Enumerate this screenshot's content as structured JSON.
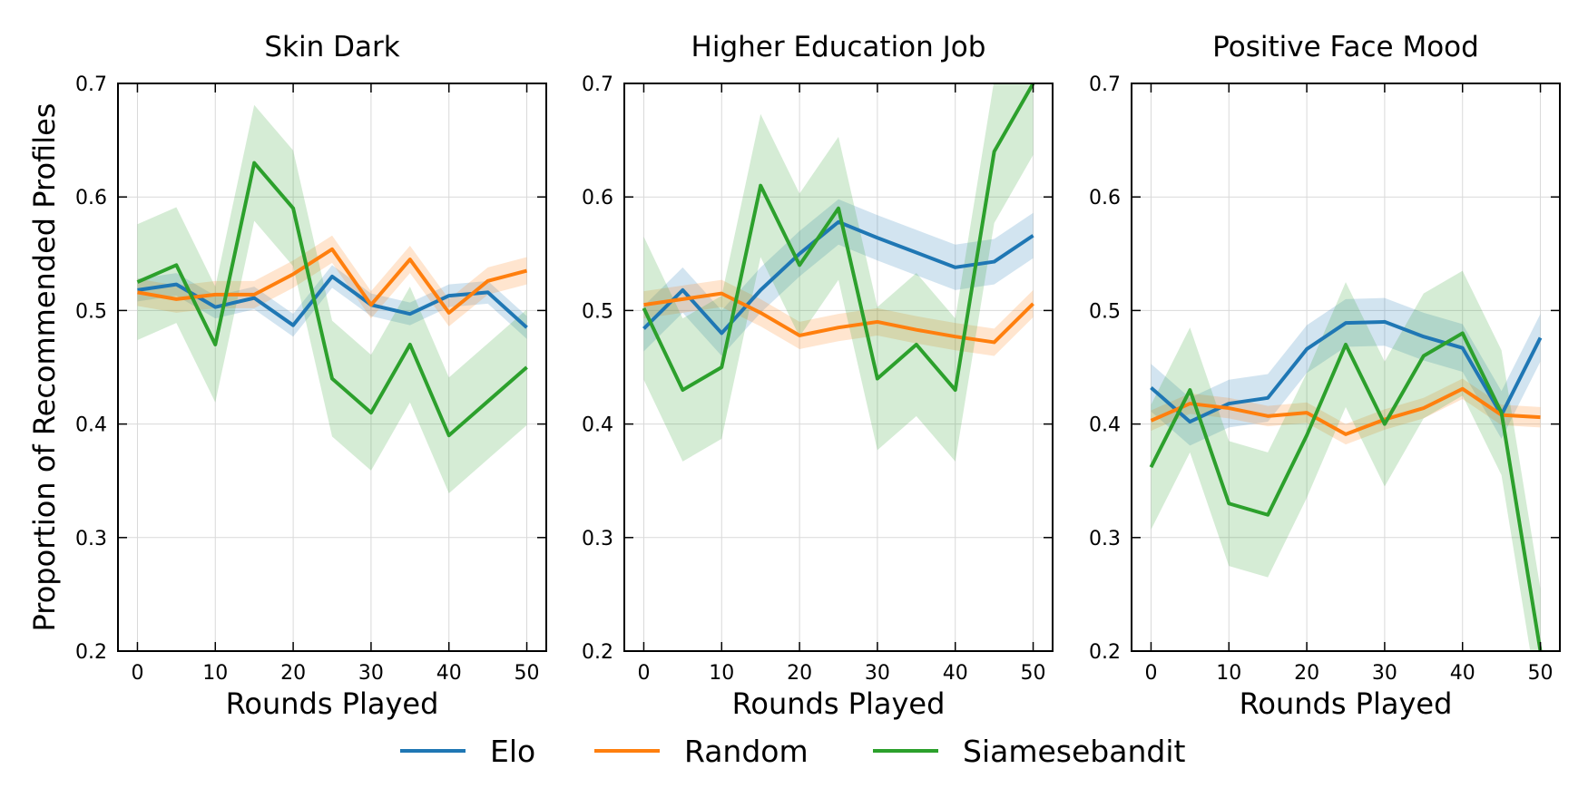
{
  "chart_data": {
    "type": "line",
    "ylabel": "Proportion of Recommended Profiles",
    "xlabel": "Rounds Played",
    "ylim": [
      0.2,
      0.7
    ],
    "xlim": [
      -2.5,
      52.5
    ],
    "xticks": [
      "0",
      "10",
      "20",
      "30",
      "40",
      "50"
    ],
    "yticks": [
      "0.2",
      "0.3",
      "0.4",
      "0.5",
      "0.6",
      "0.7"
    ],
    "grid": true,
    "legend": {
      "placement": "bottom-center",
      "entries": [
        "Elo",
        "Random",
        "Siamesebandit"
      ]
    },
    "series_colors": {
      "Elo": "#1f77b4",
      "Random": "#ff7f0e",
      "Siamesebandit": "#2ca02c"
    },
    "x": [
      0,
      5,
      10,
      15,
      20,
      25,
      30,
      35,
      40,
      45,
      50
    ],
    "panels": [
      {
        "title": "Skin Dark",
        "series": [
          {
            "name": "Elo",
            "values": [
              0.518,
              0.523,
              0.503,
              0.511,
              0.487,
              0.53,
              0.505,
              0.497,
              0.513,
              0.516,
              0.485
            ],
            "lower": [
              0.508,
              0.513,
              0.493,
              0.501,
              0.477,
              0.52,
              0.495,
              0.487,
              0.503,
              0.506,
              0.475
            ],
            "upper": [
              0.528,
              0.533,
              0.513,
              0.521,
              0.497,
              0.54,
              0.515,
              0.507,
              0.523,
              0.526,
              0.495
            ]
          },
          {
            "name": "Random",
            "values": [
              0.516,
              0.51,
              0.514,
              0.514,
              0.532,
              0.554,
              0.505,
              0.545,
              0.498,
              0.526,
              0.535
            ],
            "lower": [
              0.504,
              0.498,
              0.502,
              0.502,
              0.52,
              0.542,
              0.493,
              0.533,
              0.486,
              0.514,
              0.523
            ],
            "upper": [
              0.528,
              0.522,
              0.526,
              0.526,
              0.544,
              0.566,
              0.517,
              0.557,
              0.51,
              0.538,
              0.547
            ]
          },
          {
            "name": "Siamesebandit",
            "values": [
              0.525,
              0.54,
              0.47,
              0.63,
              0.59,
              0.44,
              0.41,
              0.47,
              0.39,
              0.42,
              0.45
            ],
            "lower": [
              0.474,
              0.489,
              0.419,
              0.579,
              0.539,
              0.389,
              0.359,
              0.419,
              0.339,
              0.369,
              0.399
            ],
            "upper": [
              0.576,
              0.591,
              0.521,
              0.681,
              0.641,
              0.491,
              0.461,
              0.521,
              0.441,
              0.471,
              0.501
            ]
          }
        ]
      },
      {
        "title": "Higher Education Job",
        "series": [
          {
            "name": "Elo",
            "values": [
              0.484,
              0.518,
              0.48,
              0.518,
              0.55,
              0.578,
              0.564,
              0.551,
              0.538,
              0.543,
              0.566
            ],
            "lower": [
              0.464,
              0.498,
              0.46,
              0.498,
              0.53,
              0.558,
              0.544,
              0.531,
              0.518,
              0.523,
              0.546
            ],
            "upper": [
              0.504,
              0.538,
              0.5,
              0.538,
              0.57,
              0.598,
              0.584,
              0.571,
              0.558,
              0.563,
              0.586
            ]
          },
          {
            "name": "Random",
            "values": [
              0.505,
              0.51,
              0.515,
              0.498,
              0.478,
              0.485,
              0.49,
              0.483,
              0.477,
              0.472,
              0.506
            ],
            "lower": [
              0.493,
              0.498,
              0.503,
              0.486,
              0.466,
              0.473,
              0.478,
              0.471,
              0.465,
              0.46,
              0.494
            ],
            "upper": [
              0.517,
              0.522,
              0.527,
              0.51,
              0.49,
              0.497,
              0.502,
              0.495,
              0.489,
              0.484,
              0.518
            ]
          },
          {
            "name": "Siamesebandit",
            "values": [
              0.502,
              0.43,
              0.45,
              0.61,
              0.54,
              0.59,
              0.44,
              0.47,
              0.43,
              0.64,
              0.7
            ],
            "lower": [
              0.439,
              0.367,
              0.387,
              0.547,
              0.477,
              0.527,
              0.377,
              0.407,
              0.367,
              0.577,
              0.637
            ],
            "upper": [
              0.565,
              0.493,
              0.513,
              0.673,
              0.603,
              0.653,
              0.503,
              0.533,
              0.493,
              0.703,
              0.763
            ]
          }
        ]
      },
      {
        "title": "Positive Face Mood",
        "series": [
          {
            "name": "Elo",
            "values": [
              0.432,
              0.402,
              0.418,
              0.423,
              0.466,
              0.489,
              0.49,
              0.477,
              0.467,
              0.408,
              0.476
            ],
            "lower": [
              0.411,
              0.381,
              0.397,
              0.402,
              0.445,
              0.468,
              0.469,
              0.456,
              0.446,
              0.387,
              0.455
            ],
            "upper": [
              0.453,
              0.423,
              0.439,
              0.444,
              0.487,
              0.51,
              0.511,
              0.498,
              0.488,
              0.429,
              0.497
            ]
          },
          {
            "name": "Random",
            "values": [
              0.403,
              0.418,
              0.414,
              0.407,
              0.41,
              0.391,
              0.404,
              0.414,
              0.431,
              0.408,
              0.406
            ],
            "lower": [
              0.394,
              0.409,
              0.405,
              0.398,
              0.401,
              0.382,
              0.395,
              0.405,
              0.422,
              0.399,
              0.397
            ],
            "upper": [
              0.412,
              0.427,
              0.423,
              0.416,
              0.419,
              0.4,
              0.413,
              0.423,
              0.44,
              0.417,
              0.415
            ]
          },
          {
            "name": "Siamesebandit",
            "values": [
              0.362,
              0.43,
              0.33,
              0.32,
              0.39,
              0.47,
              0.4,
              0.46,
              0.48,
              0.41,
              0.2
            ],
            "lower": [
              0.307,
              0.375,
              0.275,
              0.265,
              0.335,
              0.415,
              0.345,
              0.405,
              0.425,
              0.355,
              0.145
            ],
            "upper": [
              0.417,
              0.485,
              0.385,
              0.375,
              0.445,
              0.525,
              0.455,
              0.515,
              0.535,
              0.465,
              0.255
            ]
          }
        ]
      }
    ]
  }
}
